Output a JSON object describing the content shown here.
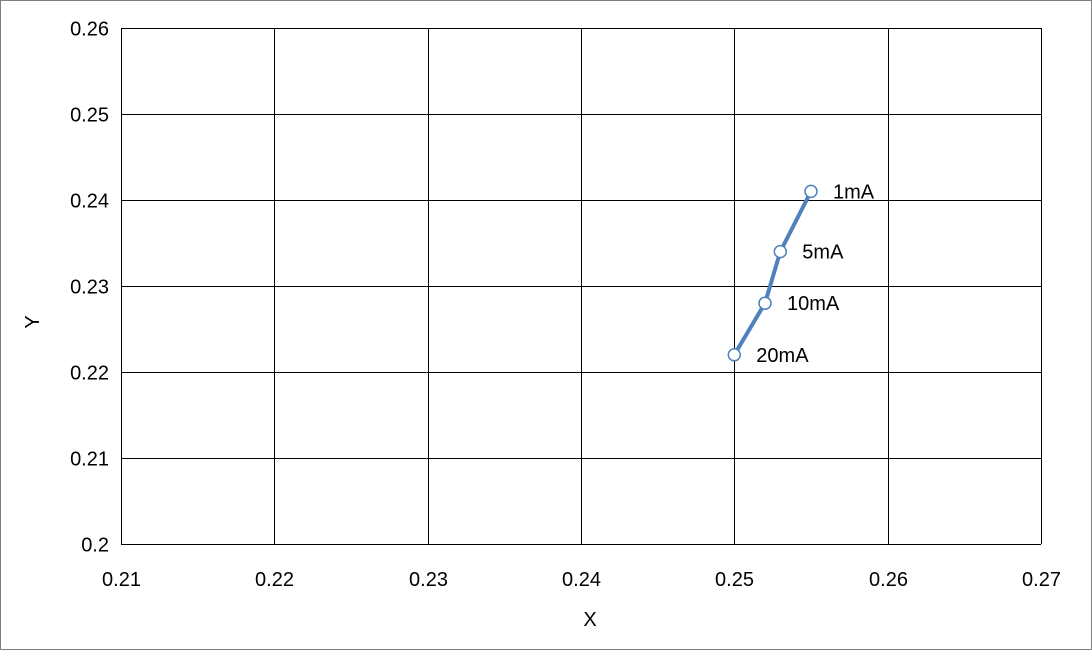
{
  "chart_data": {
    "type": "line",
    "title": "",
    "xlabel": "X",
    "ylabel": "Y",
    "xlim": [
      0.21,
      0.27
    ],
    "ylim": [
      0.2,
      0.26
    ],
    "x_ticks": [
      "0.21",
      "0.22",
      "0.23",
      "0.24",
      "0.25",
      "0.26",
      "0.27"
    ],
    "y_ticks": [
      "0.2",
      "0.21",
      "0.22",
      "0.23",
      "0.24",
      "0.25",
      "0.26"
    ],
    "grid": true,
    "legend": "none",
    "series": [
      {
        "color": "#4f81bd",
        "marker": "open-circle",
        "points": [
          {
            "x": 0.255,
            "y": 0.241,
            "label": "1mA"
          },
          {
            "x": 0.253,
            "y": 0.234,
            "label": "5mA"
          },
          {
            "x": 0.252,
            "y": 0.228,
            "label": "10mA"
          },
          {
            "x": 0.25,
            "y": 0.222,
            "label": "20mA"
          }
        ]
      }
    ]
  }
}
